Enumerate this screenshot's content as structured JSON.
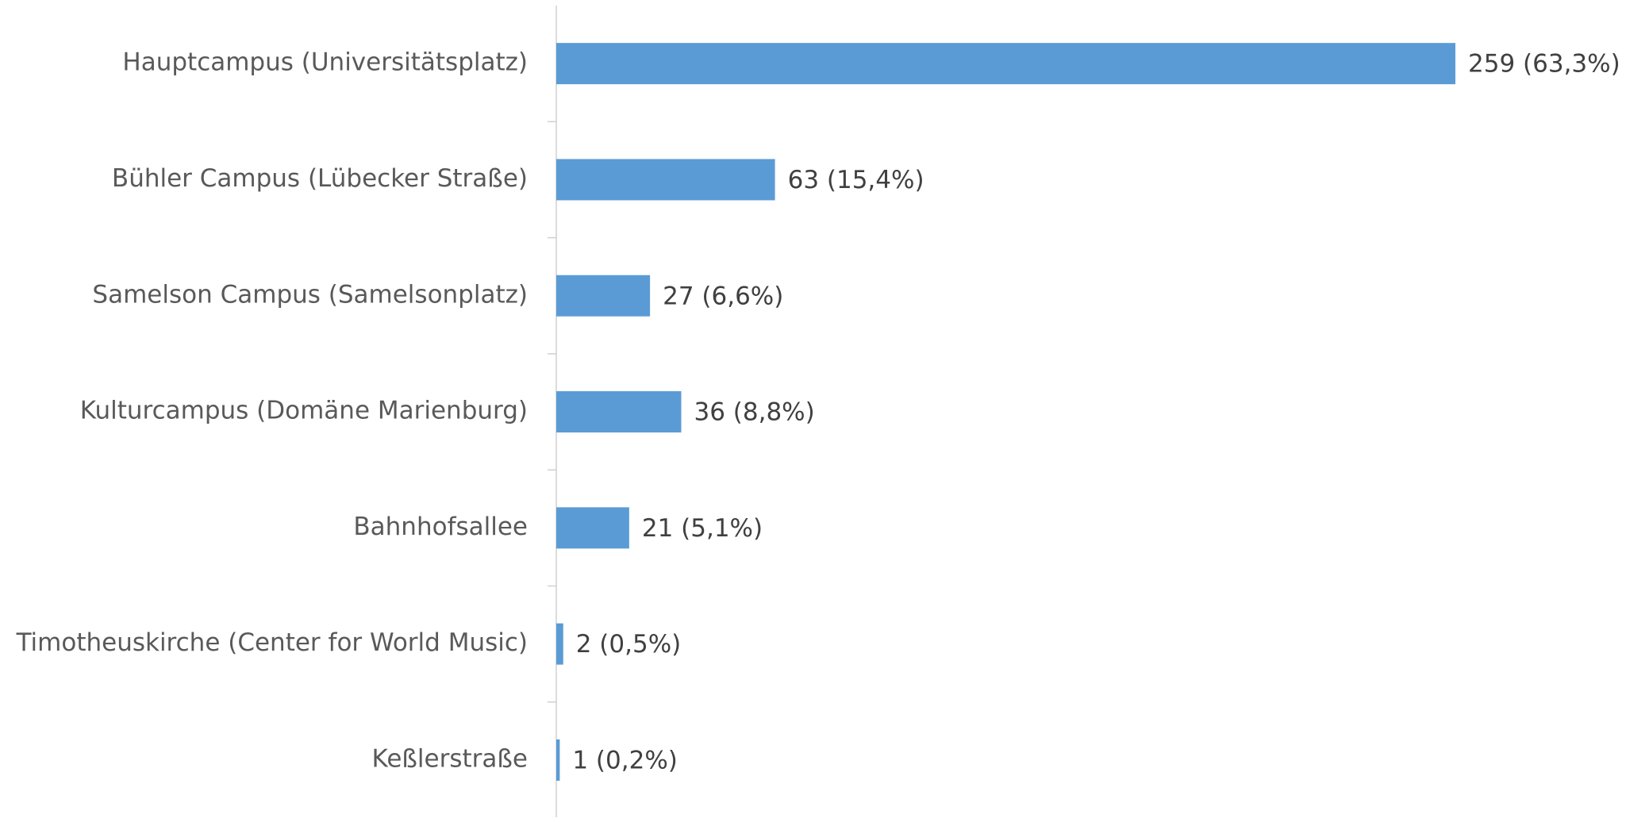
{
  "chart_data": {
    "type": "bar",
    "orientation": "horizontal",
    "color": "#5b9bd5",
    "categories": [
      "Hauptcampus (Universitätsplatz)",
      "Bühler Campus (Lübecker Straße)",
      "Samelson Campus (Samelsonplatz)",
      "Kulturcampus (Domäne Marienburg)",
      "Bahnhofsallee",
      "Timotheuskirche (Center for World Music)",
      "Keßlerstraße"
    ],
    "values": [
      259,
      63,
      27,
      36,
      21,
      2,
      1
    ],
    "value_labels": [
      "259 (63,3%)",
      "63 (15,4%)",
      "27 (6,6%)",
      "36 (8,8%)",
      "21 (5,1%)",
      "2 (0,5%)",
      "1 (0,2%)"
    ]
  }
}
